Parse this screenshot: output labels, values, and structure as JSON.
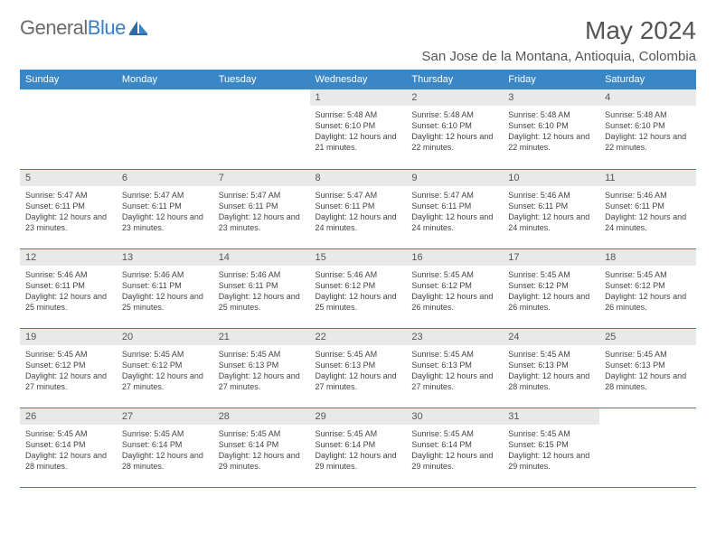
{
  "logo": {
    "text1": "General",
    "text2": "Blue"
  },
  "title": "May 2024",
  "location": "San Jose de la Montana, Antioquia, Colombia",
  "headers": [
    "Sunday",
    "Monday",
    "Tuesday",
    "Wednesday",
    "Thursday",
    "Friday",
    "Saturday"
  ],
  "colors": {
    "header_bg": "#3a87c7",
    "header_text": "#ffffff",
    "daynum_bg": "#e9e9e9",
    "border": "#3a7fc4",
    "logo_gray": "#6b6b6b",
    "logo_blue": "#3a7fc4"
  },
  "fonts": {
    "title_size": 28,
    "location_size": 15,
    "header_size": 11,
    "daynum_size": 11,
    "body_size": 9
  },
  "weeks": [
    [
      null,
      null,
      null,
      {
        "n": "1",
        "sr": "5:48 AM",
        "ss": "6:10 PM",
        "dl": "12 hours and 21 minutes."
      },
      {
        "n": "2",
        "sr": "5:48 AM",
        "ss": "6:10 PM",
        "dl": "12 hours and 22 minutes."
      },
      {
        "n": "3",
        "sr": "5:48 AM",
        "ss": "6:10 PM",
        "dl": "12 hours and 22 minutes."
      },
      {
        "n": "4",
        "sr": "5:48 AM",
        "ss": "6:10 PM",
        "dl": "12 hours and 22 minutes."
      }
    ],
    [
      {
        "n": "5",
        "sr": "5:47 AM",
        "ss": "6:11 PM",
        "dl": "12 hours and 23 minutes."
      },
      {
        "n": "6",
        "sr": "5:47 AM",
        "ss": "6:11 PM",
        "dl": "12 hours and 23 minutes."
      },
      {
        "n": "7",
        "sr": "5:47 AM",
        "ss": "6:11 PM",
        "dl": "12 hours and 23 minutes."
      },
      {
        "n": "8",
        "sr": "5:47 AM",
        "ss": "6:11 PM",
        "dl": "12 hours and 24 minutes."
      },
      {
        "n": "9",
        "sr": "5:47 AM",
        "ss": "6:11 PM",
        "dl": "12 hours and 24 minutes."
      },
      {
        "n": "10",
        "sr": "5:46 AM",
        "ss": "6:11 PM",
        "dl": "12 hours and 24 minutes."
      },
      {
        "n": "11",
        "sr": "5:46 AM",
        "ss": "6:11 PM",
        "dl": "12 hours and 24 minutes."
      }
    ],
    [
      {
        "n": "12",
        "sr": "5:46 AM",
        "ss": "6:11 PM",
        "dl": "12 hours and 25 minutes."
      },
      {
        "n": "13",
        "sr": "5:46 AM",
        "ss": "6:11 PM",
        "dl": "12 hours and 25 minutes."
      },
      {
        "n": "14",
        "sr": "5:46 AM",
        "ss": "6:11 PM",
        "dl": "12 hours and 25 minutes."
      },
      {
        "n": "15",
        "sr": "5:46 AM",
        "ss": "6:12 PM",
        "dl": "12 hours and 25 minutes."
      },
      {
        "n": "16",
        "sr": "5:45 AM",
        "ss": "6:12 PM",
        "dl": "12 hours and 26 minutes."
      },
      {
        "n": "17",
        "sr": "5:45 AM",
        "ss": "6:12 PM",
        "dl": "12 hours and 26 minutes."
      },
      {
        "n": "18",
        "sr": "5:45 AM",
        "ss": "6:12 PM",
        "dl": "12 hours and 26 minutes."
      }
    ],
    [
      {
        "n": "19",
        "sr": "5:45 AM",
        "ss": "6:12 PM",
        "dl": "12 hours and 27 minutes."
      },
      {
        "n": "20",
        "sr": "5:45 AM",
        "ss": "6:12 PM",
        "dl": "12 hours and 27 minutes."
      },
      {
        "n": "21",
        "sr": "5:45 AM",
        "ss": "6:13 PM",
        "dl": "12 hours and 27 minutes."
      },
      {
        "n": "22",
        "sr": "5:45 AM",
        "ss": "6:13 PM",
        "dl": "12 hours and 27 minutes."
      },
      {
        "n": "23",
        "sr": "5:45 AM",
        "ss": "6:13 PM",
        "dl": "12 hours and 27 minutes."
      },
      {
        "n": "24",
        "sr": "5:45 AM",
        "ss": "6:13 PM",
        "dl": "12 hours and 28 minutes."
      },
      {
        "n": "25",
        "sr": "5:45 AM",
        "ss": "6:13 PM",
        "dl": "12 hours and 28 minutes."
      }
    ],
    [
      {
        "n": "26",
        "sr": "5:45 AM",
        "ss": "6:14 PM",
        "dl": "12 hours and 28 minutes."
      },
      {
        "n": "27",
        "sr": "5:45 AM",
        "ss": "6:14 PM",
        "dl": "12 hours and 28 minutes."
      },
      {
        "n": "28",
        "sr": "5:45 AM",
        "ss": "6:14 PM",
        "dl": "12 hours and 29 minutes."
      },
      {
        "n": "29",
        "sr": "5:45 AM",
        "ss": "6:14 PM",
        "dl": "12 hours and 29 minutes."
      },
      {
        "n": "30",
        "sr": "5:45 AM",
        "ss": "6:14 PM",
        "dl": "12 hours and 29 minutes."
      },
      {
        "n": "31",
        "sr": "5:45 AM",
        "ss": "6:15 PM",
        "dl": "12 hours and 29 minutes."
      },
      null
    ]
  ],
  "labels": {
    "sunrise": "Sunrise:",
    "sunset": "Sunset:",
    "daylight": "Daylight:"
  }
}
